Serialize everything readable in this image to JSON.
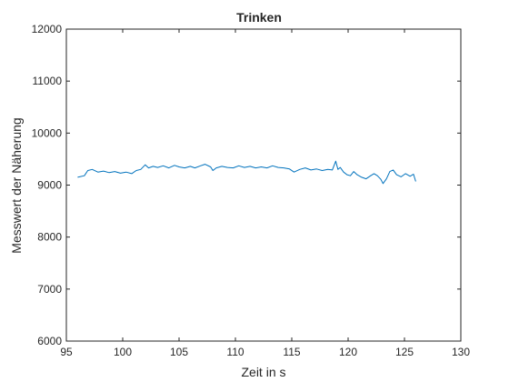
{
  "chart_data": {
    "type": "line",
    "title": "Trinken",
    "xlabel": "Zeit in s",
    "ylabel": "Messwert der Näherung",
    "xlim": [
      95,
      130
    ],
    "ylim": [
      6000,
      12000
    ],
    "xticks": [
      95,
      100,
      105,
      110,
      115,
      120,
      125,
      130
    ],
    "yticks": [
      6000,
      7000,
      8000,
      9000,
      10000,
      11000,
      12000
    ],
    "grid": false,
    "box": true,
    "series": [
      {
        "color": "#0072bd",
        "x": [
          96.0,
          96.6,
          96.9,
          97.3,
          97.8,
          98.3,
          98.8,
          99.3,
          99.8,
          100.3,
          100.8,
          101.2,
          101.6,
          102.0,
          102.3,
          102.7,
          103.1,
          103.6,
          104.1,
          104.6,
          105.0,
          105.5,
          106.0,
          106.4,
          106.9,
          107.3,
          107.8,
          108.0,
          108.3,
          108.8,
          109.3,
          109.8,
          110.3,
          110.8,
          111.3,
          111.8,
          112.3,
          112.8,
          113.3,
          113.8,
          114.3,
          114.8,
          115.2,
          115.7,
          116.2,
          116.7,
          117.2,
          117.7,
          118.2,
          118.6,
          118.9,
          119.1,
          119.3,
          119.6,
          119.9,
          120.2,
          120.5,
          120.8,
          121.2,
          121.6,
          122.0,
          122.3,
          122.6,
          122.9,
          123.1,
          123.4,
          123.7,
          124.0,
          124.3,
          124.7,
          125.1,
          125.5,
          125.8,
          126.0
        ],
        "y": [
          9150,
          9180,
          9280,
          9300,
          9250,
          9270,
          9240,
          9260,
          9230,
          9250,
          9220,
          9280,
          9300,
          9390,
          9330,
          9360,
          9340,
          9370,
          9330,
          9380,
          9350,
          9330,
          9360,
          9330,
          9370,
          9400,
          9350,
          9280,
          9330,
          9360,
          9340,
          9330,
          9370,
          9340,
          9360,
          9330,
          9350,
          9330,
          9370,
          9340,
          9330,
          9310,
          9250,
          9300,
          9330,
          9290,
          9310,
          9280,
          9300,
          9290,
          9460,
          9300,
          9340,
          9250,
          9200,
          9180,
          9260,
          9200,
          9150,
          9120,
          9180,
          9220,
          9180,
          9110,
          9030,
          9120,
          9260,
          9290,
          9200,
          9160,
          9220,
          9170,
          9210,
          9070
        ]
      }
    ]
  }
}
